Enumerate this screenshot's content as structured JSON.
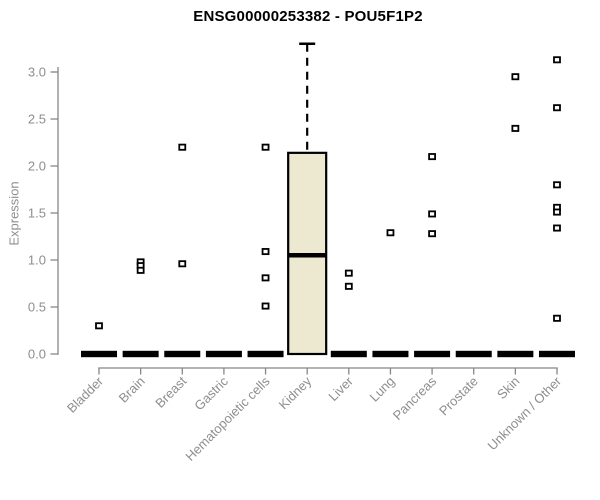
{
  "colors": {
    "box_fill": "#EDE8D0",
    "box_stroke": "#000000",
    "axis": "#878787",
    "tick_text": "#8e8e8e",
    "title_text": "#000000",
    "background": "#ffffff"
  },
  "chart_data": {
    "type": "boxplot",
    "title": "ENSG00000253382 - POU5F1P2",
    "xlabel": "",
    "ylabel": "Expression",
    "ylim": [
      0,
      3.3
    ],
    "yticks": [
      0.0,
      0.5,
      1.0,
      1.5,
      2.0,
      2.5,
      3.0
    ],
    "grid": false,
    "legend": null,
    "categories": [
      "Bladder",
      "Brain",
      "Breast",
      "Gastric",
      "Hematopoietic cells",
      "Kidney",
      "Liver",
      "Lung",
      "Pancreas",
      "Prostate",
      "Skin",
      "Unknown / Other"
    ],
    "boxes": [
      {
        "category": "Bladder",
        "q1": 0,
        "median": 0,
        "q3": 0,
        "whisker_low": 0,
        "whisker_high": 0,
        "outliers": [
          0.3
        ]
      },
      {
        "category": "Brain",
        "q1": 0,
        "median": 0,
        "q3": 0,
        "whisker_low": 0,
        "whisker_high": 0,
        "outliers": [
          0.98,
          0.94,
          0.89
        ]
      },
      {
        "category": "Breast",
        "q1": 0,
        "median": 0,
        "q3": 0,
        "whisker_low": 0,
        "whisker_high": 0,
        "outliers": [
          2.2,
          0.96
        ]
      },
      {
        "category": "Gastric",
        "q1": 0,
        "median": 0,
        "q3": 0,
        "whisker_low": 0,
        "whisker_high": 0,
        "outliers": []
      },
      {
        "category": "Hematopoietic cells",
        "q1": 0,
        "median": 0,
        "q3": 0,
        "whisker_low": 0,
        "whisker_high": 0,
        "outliers": [
          2.2,
          1.09,
          0.81,
          0.51
        ]
      },
      {
        "category": "Kidney",
        "q1": 0,
        "median": 1.05,
        "q3": 2.14,
        "whisker_low": 0,
        "whisker_high": 3.3,
        "outliers": []
      },
      {
        "category": "Liver",
        "q1": 0,
        "median": 0,
        "q3": 0,
        "whisker_low": 0,
        "whisker_high": 0,
        "outliers": [
          0.86,
          0.72
        ]
      },
      {
        "category": "Lung",
        "q1": 0,
        "median": 0,
        "q3": 0,
        "whisker_low": 0,
        "whisker_high": 0,
        "outliers": [
          1.29
        ]
      },
      {
        "category": "Pancreas",
        "q1": 0,
        "median": 0,
        "q3": 0,
        "whisker_low": 0,
        "whisker_high": 0,
        "outliers": [
          2.1,
          1.49,
          1.28
        ]
      },
      {
        "category": "Prostate",
        "q1": 0,
        "median": 0,
        "q3": 0,
        "whisker_low": 0,
        "whisker_high": 0,
        "outliers": []
      },
      {
        "category": "Skin",
        "q1": 0,
        "median": 0,
        "q3": 0,
        "whisker_low": 0,
        "whisker_high": 0,
        "outliers": [
          2.95,
          2.4
        ]
      },
      {
        "category": "Unknown / Other",
        "q1": 0,
        "median": 0,
        "q3": 0,
        "whisker_low": 0,
        "whisker_high": 0,
        "outliers": [
          3.13,
          2.62,
          1.8,
          1.56,
          1.51,
          1.34,
          0.38
        ]
      }
    ]
  }
}
